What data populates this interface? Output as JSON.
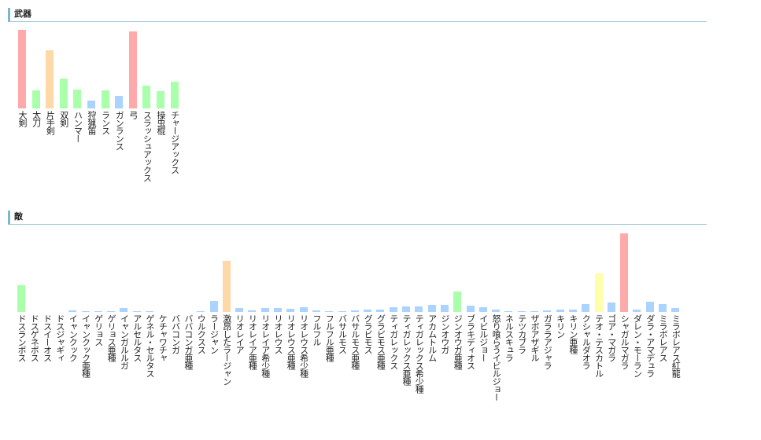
{
  "chart_data": [
    {
      "type": "bar",
      "title": "武器",
      "categories": [
        "大剣",
        "太刀",
        "片手剣",
        "双剣",
        "ハンマー",
        "狩猟笛",
        "ランス",
        "ガンランス",
        "弓",
        "スラッシュアックス",
        "操虫棍",
        "チャージアックス"
      ],
      "values": [
        100,
        23,
        74,
        38,
        24,
        10,
        23,
        16,
        98,
        29,
        22,
        34
      ],
      "colors": [
        "#ffaaaa",
        "#aaffaa",
        "#ffd8a8",
        "#aaffaa",
        "#aaffaa",
        "#aad4ff",
        "#aaffaa",
        "#aad4ff",
        "#ffaaaa",
        "#aaffaa",
        "#aaffaa",
        "#aaffaa"
      ]
    },
    {
      "type": "bar",
      "title": "敵",
      "categories": [
        "ドスランポス",
        "ドスゲネポス",
        "ドスイーオス",
        "ドスジャギィ",
        "イャンクック",
        "イャンクック亜種",
        "ゲリョス",
        "ゲリョス亜種",
        "イャンガルルガ",
        "アルセルタス",
        "ゲネル・セルタス",
        "ケチャワチャ",
        "ババコンガ",
        "ババコンガ亜種",
        "ウルクスス",
        "ラージャン",
        "激昂したラージャン",
        "リオレイア",
        "リオレイア亜種",
        "リオレイア希少種",
        "リオレウス",
        "リオレウス亜種",
        "リオレウス希少種",
        "フルフル",
        "フルフル亜種",
        "バサルモス",
        "バサルモス亜種",
        "グラビモス",
        "グラビモス亜種",
        "ティガレックス",
        "ティガレックス亜種",
        "ティガレックス希少種",
        "アカムトルム",
        "ジンオウガ",
        "ジンオウガ亜種",
        "ブラキディオス",
        "イビルジョー",
        "怒り喰らうイビルジョー",
        "ネルスキュラ",
        "テツカブラ",
        "ザボアザギル",
        "ガララアジャラ",
        "キリン",
        "キリン亜種",
        "クシャルダオラ",
        "テオ・テスカトル",
        "ゴア・マガラ",
        "シャガルマガラ",
        "ダレン・モーラン",
        "ダラ・アマデュラ",
        "ミラボレアス",
        "ミラボレアス紅龍"
      ],
      "values": [
        34,
        0,
        0,
        0,
        2,
        1,
        1,
        1,
        5,
        1,
        1,
        0,
        0,
        0,
        1,
        14,
        65,
        5,
        2,
        5,
        5,
        4,
        6,
        2,
        1,
        1,
        2,
        3,
        3,
        6,
        7,
        7,
        9,
        9,
        26,
        8,
        6,
        3,
        1,
        1,
        1,
        2,
        3,
        3,
        10,
        49,
        12,
        100,
        3,
        13,
        10,
        5
      ],
      "colors": [
        "#aaffaa",
        "#aad4ff",
        "#aad4ff",
        "#aad4ff",
        "#aad4ff",
        "#aad4ff",
        "#aad4ff",
        "#aad4ff",
        "#aad4ff",
        "#aad4ff",
        "#aad4ff",
        "#aad4ff",
        "#aad4ff",
        "#aad4ff",
        "#aad4ff",
        "#aad4ff",
        "#ffd8a8",
        "#aad4ff",
        "#aad4ff",
        "#aad4ff",
        "#aad4ff",
        "#aad4ff",
        "#aad4ff",
        "#aad4ff",
        "#aad4ff",
        "#aad4ff",
        "#aad4ff",
        "#aad4ff",
        "#aad4ff",
        "#aad4ff",
        "#aad4ff",
        "#aad4ff",
        "#aad4ff",
        "#aad4ff",
        "#aaffaa",
        "#aad4ff",
        "#aad4ff",
        "#aad4ff",
        "#aad4ff",
        "#aad4ff",
        "#aad4ff",
        "#aad4ff",
        "#aad4ff",
        "#aad4ff",
        "#aad4ff",
        "#ffffaa",
        "#aad4ff",
        "#ffaaaa",
        "#aad4ff",
        "#aad4ff",
        "#aad4ff",
        "#aad4ff"
      ]
    }
  ]
}
